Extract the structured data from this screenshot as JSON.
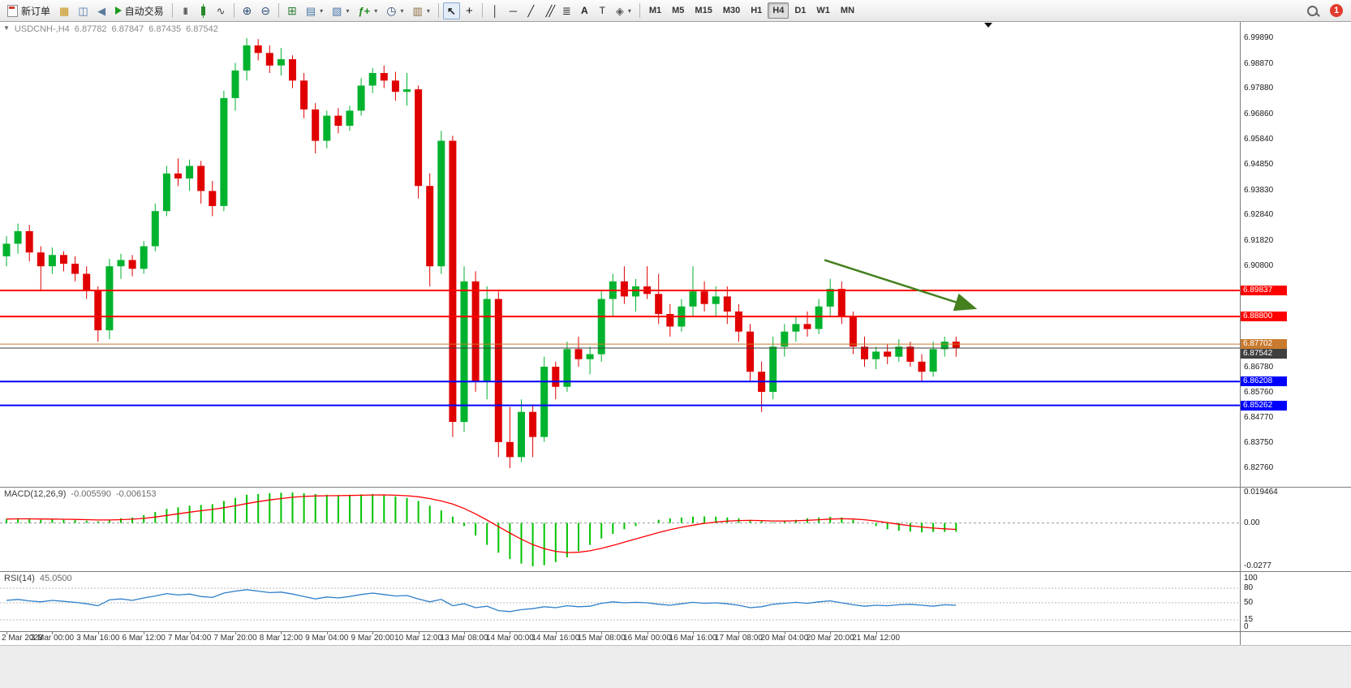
{
  "toolbar": {
    "new_order": "新订单",
    "autotrading": "自动交易",
    "timeframes": [
      "M1",
      "M5",
      "M15",
      "M30",
      "H1",
      "H4",
      "D1",
      "W1",
      "MN"
    ],
    "active_timeframe": "H4",
    "notification_count": "1"
  },
  "quote_header": {
    "symbol": "USDCNH-,H4",
    "open": "6.87782",
    "high": "6.87847",
    "low": "6.87435",
    "close": "6.87542"
  },
  "colors": {
    "bull": "#00b22d",
    "bear": "#e00000",
    "macd_hist": "#00c300",
    "macd_signal": "#ff0000",
    "rsi_line": "#2e7fca",
    "current_price": "#3f3f3f",
    "arrow": "#45801f"
  },
  "chart_data": {
    "type": "candlestick",
    "title": "USDCNH-,H4",
    "timeframe": "H4",
    "price_axis_top_value": 6.9989,
    "price_axis_bottom_value": 6.8276,
    "price_axis_labels": [
      "6.99890",
      "6.98870",
      "6.97880",
      "6.96860",
      "6.95840",
      "6.94850",
      "6.93830",
      "6.92840",
      "6.91820",
      "6.90800",
      "6.86780",
      "6.85760",
      "6.84770",
      "6.83750",
      "6.82760"
    ],
    "time_labels": [
      "2 Mar 2023",
      "3 Mar 00:00",
      "3 Mar 16:00",
      "6 Mar 12:00",
      "7 Mar 04:00",
      "7 Mar 20:00",
      "8 Mar 12:00",
      "9 Mar 04:00",
      "9 Mar 20:00",
      "10 Mar 12:00",
      "13 Mar 08:00",
      "14 Mar 00:00",
      "14 Mar 16:00",
      "15 Mar 08:00",
      "16 Mar 00:00",
      "16 Mar 16:00",
      "17 Mar 08:00",
      "20 Mar 04:00",
      "20 Mar 20:00",
      "21 Mar 12:00"
    ],
    "candles": [
      [
        6.912,
        6.92,
        6.908,
        6.917
      ],
      [
        6.917,
        6.925,
        6.913,
        6.922
      ],
      [
        6.922,
        6.9245,
        6.91,
        6.9135
      ],
      [
        6.9135,
        6.916,
        6.898,
        6.908
      ],
      [
        6.908,
        6.9155,
        6.905,
        6.9125
      ],
      [
        6.9125,
        6.914,
        6.906,
        6.909
      ],
      [
        6.909,
        6.912,
        6.902,
        6.905
      ],
      [
        6.905,
        6.908,
        6.895,
        6.8985
      ],
      [
        6.8985,
        6.9,
        6.878,
        6.8825
      ],
      [
        6.8825,
        6.911,
        6.879,
        6.908
      ],
      [
        6.908,
        6.913,
        6.903,
        6.9105
      ],
      [
        6.9105,
        6.9125,
        6.904,
        6.907
      ],
      [
        6.907,
        6.918,
        6.905,
        6.916
      ],
      [
        6.916,
        6.933,
        6.914,
        6.93
      ],
      [
        6.93,
        6.948,
        6.928,
        6.945
      ],
      [
        6.945,
        6.951,
        6.94,
        6.943
      ],
      [
        6.943,
        6.9505,
        6.938,
        6.948
      ],
      [
        6.948,
        6.95,
        6.933,
        6.938
      ],
      [
        6.938,
        6.942,
        6.928,
        6.932
      ],
      [
        6.932,
        6.978,
        6.93,
        6.975
      ],
      [
        6.975,
        6.989,
        6.97,
        6.986
      ],
      [
        6.986,
        6.9989,
        6.982,
        6.996
      ],
      [
        6.996,
        6.9985,
        6.99,
        6.993
      ],
      [
        6.993,
        6.996,
        6.985,
        6.988
      ],
      [
        6.988,
        6.995,
        6.984,
        6.9905
      ],
      [
        6.9905,
        6.992,
        6.979,
        6.982
      ],
      [
        6.982,
        6.985,
        6.967,
        6.9705
      ],
      [
        6.9705,
        6.973,
        6.953,
        6.958
      ],
      [
        6.958,
        6.97,
        6.955,
        6.968
      ],
      [
        6.968,
        6.971,
        6.961,
        6.964
      ],
      [
        6.964,
        6.972,
        6.962,
        6.97
      ],
      [
        6.97,
        6.983,
        6.968,
        6.98
      ],
      [
        6.98,
        6.987,
        6.977,
        6.985
      ],
      [
        6.985,
        6.988,
        6.979,
        6.982
      ],
      [
        6.982,
        6.9855,
        6.974,
        6.9775
      ],
      [
        6.9775,
        6.985,
        6.972,
        6.9785
      ],
      [
        6.9785,
        6.98,
        6.935,
        6.94
      ],
      [
        6.94,
        6.945,
        6.9,
        6.908
      ],
      [
        6.908,
        6.962,
        6.905,
        6.958
      ],
      [
        6.958,
        6.96,
        6.84,
        6.846
      ],
      [
        6.846,
        6.908,
        6.842,
        6.902
      ],
      [
        6.902,
        6.906,
        6.858,
        6.862
      ],
      [
        6.862,
        6.9,
        6.855,
        6.895
      ],
      [
        6.895,
        6.898,
        6.832,
        6.838
      ],
      [
        6.838,
        6.852,
        6.8276,
        6.832
      ],
      [
        6.832,
        6.855,
        6.83,
        6.85
      ],
      [
        6.85,
        6.853,
        6.832,
        6.84
      ],
      [
        6.84,
        6.872,
        6.838,
        6.868
      ],
      [
        6.868,
        6.87,
        6.855,
        6.86
      ],
      [
        6.86,
        6.878,
        6.858,
        6.875
      ],
      [
        6.875,
        6.88,
        6.868,
        6.871
      ],
      [
        6.871,
        6.876,
        6.865,
        6.873
      ],
      [
        6.873,
        6.898,
        6.87,
        6.895
      ],
      [
        6.895,
        6.905,
        6.888,
        6.902
      ],
      [
        6.902,
        6.908,
        6.893,
        6.896
      ],
      [
        6.896,
        6.903,
        6.89,
        6.9
      ],
      [
        6.9,
        6.908,
        6.895,
        6.897
      ],
      [
        6.897,
        6.905,
        6.885,
        6.889
      ],
      [
        6.889,
        6.893,
        6.88,
        6.884
      ],
      [
        6.884,
        6.895,
        6.882,
        6.892
      ],
      [
        6.892,
        6.908,
        6.888,
        6.898
      ],
      [
        6.898,
        6.902,
        6.89,
        6.893
      ],
      [
        6.893,
        6.9,
        6.888,
        6.896
      ],
      [
        6.896,
        6.9,
        6.885,
        6.89
      ],
      [
        6.89,
        6.893,
        6.878,
        6.882
      ],
      [
        6.882,
        6.885,
        6.862,
        6.866
      ],
      [
        6.866,
        6.87,
        6.85,
        6.858
      ],
      [
        6.858,
        6.88,
        6.855,
        6.876
      ],
      [
        6.876,
        6.885,
        6.872,
        6.882
      ],
      [
        6.882,
        6.888,
        6.878,
        6.885
      ],
      [
        6.885,
        6.89,
        6.88,
        6.883
      ],
      [
        6.883,
        6.895,
        6.881,
        6.892
      ],
      [
        6.892,
        6.903,
        6.888,
        6.899
      ],
      [
        6.899,
        6.902,
        6.885,
        6.888
      ],
      [
        6.888,
        6.89,
        6.873,
        6.876
      ],
      [
        6.876,
        6.88,
        6.868,
        6.871
      ],
      [
        6.871,
        6.876,
        6.867,
        6.874
      ],
      [
        6.874,
        6.877,
        6.869,
        6.872
      ],
      [
        6.872,
        6.879,
        6.87,
        6.876
      ],
      [
        6.876,
        6.878,
        6.868,
        6.87
      ],
      [
        6.87,
        6.873,
        6.862,
        6.866
      ],
      [
        6.866,
        6.878,
        6.864,
        6.875
      ],
      [
        6.875,
        6.88,
        6.872,
        6.878
      ],
      [
        6.878,
        6.88,
        6.872,
        6.8754
      ]
    ],
    "horizontal_lines": [
      {
        "price": 6.89837,
        "label": "6.89837",
        "color": "#ff0000",
        "width": 2,
        "name": "resistance-line-1"
      },
      {
        "price": 6.888,
        "label": "6.88800",
        "color": "#ff0000",
        "width": 2,
        "name": "resistance-line-2"
      },
      {
        "price": 6.87702,
        "label": "6.87702",
        "color": "#c87a2e",
        "width": 1,
        "name": "level-line-orange"
      },
      {
        "price": 6.86208,
        "label": "6.86208",
        "color": "#0000ff",
        "width": 2,
        "name": "support-line-1"
      },
      {
        "price": 6.85262,
        "label": "6.85262",
        "color": "#0000ff",
        "width": 2,
        "name": "support-line-2"
      }
    ],
    "current_price_line": {
      "price": 6.87542,
      "label": "6.87542"
    },
    "trend_arrow": {
      "from_candle": 71.5,
      "from_price": 6.9105,
      "to_candle": 84.5,
      "to_price": 6.8915
    },
    "indicators": {
      "macd": {
        "name": "MACD(12,26,9)",
        "value_main": "-0.005590",
        "value_signal": "-0.006153",
        "axis_max": 0.019464,
        "axis_min": -0.0277,
        "axis_labels": [
          {
            "text": "0.019464",
            "value": 0.019464
          },
          {
            "text": "0.00",
            "value": 0
          },
          {
            "text": "-0.0277",
            "value": -0.0277
          }
        ],
        "histogram": [
          0.0025,
          0.003,
          0.0028,
          0.002,
          0.0022,
          0.002,
          0.0018,
          0.0015,
          0.001,
          0.002,
          0.003,
          0.0035,
          0.005,
          0.007,
          0.009,
          0.01,
          0.011,
          0.0115,
          0.012,
          0.014,
          0.016,
          0.018,
          0.0185,
          0.019,
          0.0193,
          0.0195,
          0.019,
          0.0185,
          0.018,
          0.0178,
          0.018,
          0.0182,
          0.0185,
          0.018,
          0.017,
          0.016,
          0.014,
          0.011,
          0.008,
          0.004,
          -0.002,
          -0.008,
          -0.014,
          -0.019,
          -0.023,
          -0.026,
          -0.0277,
          -0.027,
          -0.025,
          -0.022,
          -0.018,
          -0.014,
          -0.01,
          -0.007,
          -0.004,
          -0.002,
          0.0,
          0.002,
          0.003,
          0.0035,
          0.004,
          0.0042,
          0.004,
          0.0035,
          0.003,
          0.002,
          0.001,
          0.0005,
          0.001,
          0.002,
          0.003,
          0.0035,
          0.004,
          0.0035,
          0.002,
          0.0,
          -0.002,
          -0.004,
          -0.005,
          -0.0055,
          -0.006,
          -0.0058,
          -0.0057,
          -0.0056
        ]
      },
      "rsi": {
        "name": "RSI(14)",
        "value": "45.0500",
        "levels": [
          80,
          50,
          15
        ],
        "axis_labels": [
          {
            "text": "100",
            "value": 100
          },
          {
            "text": "80",
            "value": 80
          },
          {
            "text": "50",
            "value": 50
          },
          {
            "text": "15",
            "value": 15
          },
          {
            "text": "0",
            "value": 0
          }
        ],
        "values": [
          55,
          57,
          54,
          52,
          55,
          53,
          51,
          48,
          44,
          56,
          58,
          55,
          60,
          64,
          69,
          66,
          68,
          63,
          61,
          70,
          74,
          77,
          74,
          71,
          72,
          68,
          63,
          58,
          62,
          60,
          63,
          67,
          70,
          67,
          64,
          65,
          58,
          52,
          57,
          44,
          48,
          40,
          43,
          34,
          32,
          36,
          38,
          42,
          40,
          44,
          42,
          43,
          49,
          52,
          50,
          51,
          50,
          47,
          45,
          48,
          51,
          49,
          50,
          48,
          45,
          40,
          42,
          47,
          49,
          51,
          49,
          52,
          54,
          50,
          46,
          43,
          45,
          44,
          46,
          47,
          45,
          43,
          46,
          45
        ]
      }
    }
  }
}
